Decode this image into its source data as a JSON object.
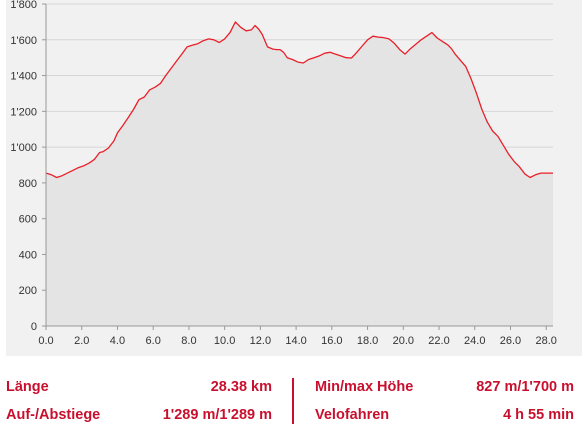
{
  "chart_data": {
    "type": "area",
    "x": [
      0.0,
      0.3,
      0.6,
      0.9,
      1.2,
      1.5,
      1.8,
      2.1,
      2.4,
      2.7,
      3.0,
      3.2,
      3.5,
      3.8,
      4.0,
      4.3,
      4.6,
      4.9,
      5.2,
      5.5,
      5.8,
      6.1,
      6.4,
      6.7,
      7.0,
      7.3,
      7.6,
      7.9,
      8.2,
      8.5,
      8.8,
      9.1,
      9.4,
      9.7,
      10.0,
      10.3,
      10.6,
      10.9,
      11.2,
      11.5,
      11.7,
      11.9,
      12.1,
      12.4,
      12.7,
      12.9,
      13.1,
      13.3,
      13.5,
      13.8,
      14.1,
      14.4,
      14.7,
      15.0,
      15.3,
      15.6,
      15.9,
      16.2,
      16.5,
      16.8,
      17.1,
      17.4,
      17.7,
      18.0,
      18.3,
      18.6,
      18.9,
      19.2,
      19.5,
      19.8,
      20.1,
      20.4,
      20.7,
      21.0,
      21.3,
      21.6,
      21.9,
      22.2,
      22.5,
      22.7,
      22.9,
      23.2,
      23.5,
      23.8,
      24.1,
      24.4,
      24.7,
      25.0,
      25.3,
      25.6,
      25.9,
      26.2,
      26.5,
      26.8,
      27.1,
      27.4,
      27.7,
      28.0,
      28.38
    ],
    "y": [
      855,
      845,
      830,
      840,
      855,
      870,
      885,
      895,
      910,
      930,
      970,
      975,
      995,
      1035,
      1080,
      1120,
      1165,
      1210,
      1265,
      1280,
      1320,
      1335,
      1355,
      1400,
      1440,
      1480,
      1520,
      1560,
      1570,
      1578,
      1595,
      1605,
      1600,
      1585,
      1605,
      1640,
      1700,
      1670,
      1650,
      1655,
      1680,
      1660,
      1630,
      1560,
      1548,
      1545,
      1545,
      1530,
      1500,
      1490,
      1475,
      1470,
      1490,
      1500,
      1510,
      1525,
      1530,
      1520,
      1510,
      1500,
      1498,
      1530,
      1565,
      1600,
      1620,
      1615,
      1612,
      1605,
      1580,
      1545,
      1520,
      1550,
      1575,
      1600,
      1620,
      1640,
      1610,
      1590,
      1570,
      1550,
      1520,
      1485,
      1450,
      1380,
      1300,
      1210,
      1140,
      1090,
      1060,
      1010,
      960,
      920,
      890,
      850,
      830,
      845,
      855,
      855,
      855
    ],
    "ylim": [
      0,
      1800
    ],
    "xlim": [
      0,
      28.38
    ],
    "ytick_labels": [
      "0",
      "200",
      "400",
      "600",
      "800",
      "1'000",
      "1'200",
      "1'400",
      "1'600",
      "1'800"
    ],
    "xtick_labels": [
      "0.0",
      "2.0",
      "4.0",
      "6.0",
      "8.0",
      "10.0",
      "12.0",
      "14.0",
      "16.0",
      "18.0",
      "20.0",
      "22.0",
      "24.0",
      "26.0",
      "28.0"
    ],
    "grid": true,
    "line_color": "#e8202a",
    "fill_color": "#e4e4e4"
  },
  "stats": {
    "laenge_label": "Länge",
    "laenge_value": "28.38 km",
    "aufab_label": "Auf-/Abstiege",
    "aufab_value": "1'289 m/1'289 m",
    "minmax_label": "Min/max Höhe",
    "minmax_value": "827 m/1'700 m",
    "velo_label": "Velofahren",
    "velo_value": "4 h 55 min"
  },
  "colors": {
    "accent": "#c8102e",
    "panel_bg": "#f1f1f1",
    "grid": "#d6d6d6"
  }
}
